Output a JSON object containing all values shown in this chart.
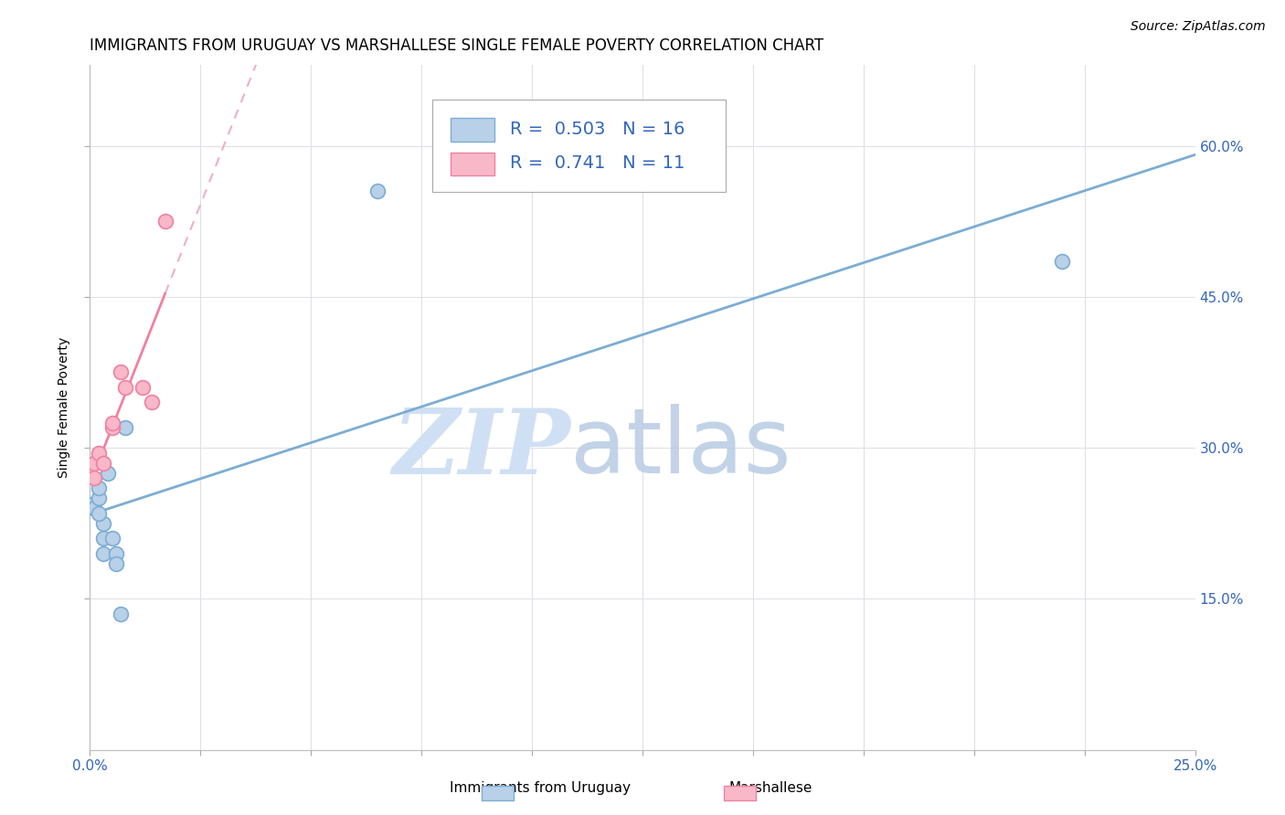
{
  "title": "IMMIGRANTS FROM URUGUAY VS MARSHALLESE SINGLE FEMALE POVERTY CORRELATION CHART",
  "source": "Source: ZipAtlas.com",
  "ylabel": "Single Female Poverty",
  "xmin": 0.0,
  "xmax": 0.25,
  "ymin": 0.0,
  "ymax": 0.68,
  "uruguay_x": [
    0.001,
    0.001,
    0.002,
    0.002,
    0.003,
    0.003,
    0.003,
    0.004,
    0.005,
    0.006,
    0.006,
    0.007,
    0.008,
    0.065,
    0.22,
    0.002
  ],
  "uruguay_y": [
    0.245,
    0.24,
    0.25,
    0.26,
    0.225,
    0.21,
    0.195,
    0.275,
    0.21,
    0.195,
    0.185,
    0.135,
    0.32,
    0.555,
    0.485,
    0.235
  ],
  "marshallese_x": [
    0.001,
    0.001,
    0.002,
    0.003,
    0.005,
    0.005,
    0.007,
    0.008,
    0.012,
    0.014,
    0.017
  ],
  "marshallese_y": [
    0.285,
    0.27,
    0.295,
    0.285,
    0.32,
    0.325,
    0.375,
    0.36,
    0.36,
    0.345,
    0.525
  ],
  "uruguay_color": "#b8d0e8",
  "marshallese_color": "#f8b8c8",
  "uruguay_edge_color": "#7badd4",
  "marshallese_edge_color": "#f080a0",
  "uruguay_line_color": "#7badd4",
  "marshallese_line_color": "#f080a0",
  "marshallese_dash_color": "#f0b0c0",
  "legend_r1": "R = 0.503",
  "legend_n1": "N = 16",
  "legend_r2": "R = 0.741",
  "legend_n2": "N = 11",
  "watermark_zip": "ZIP",
  "watermark_atlas": "atlas",
  "watermark_color": "#d0e0f4",
  "title_fontsize": 12,
  "axis_label_fontsize": 10,
  "tick_label_fontsize": 11,
  "legend_fontsize": 14,
  "source_fontsize": 10,
  "ytick_values": [
    0.15,
    0.3,
    0.45,
    0.6
  ],
  "xtick_values": [
    0.0,
    0.025,
    0.05,
    0.075,
    0.1,
    0.125,
    0.15,
    0.175,
    0.2,
    0.225,
    0.25
  ]
}
